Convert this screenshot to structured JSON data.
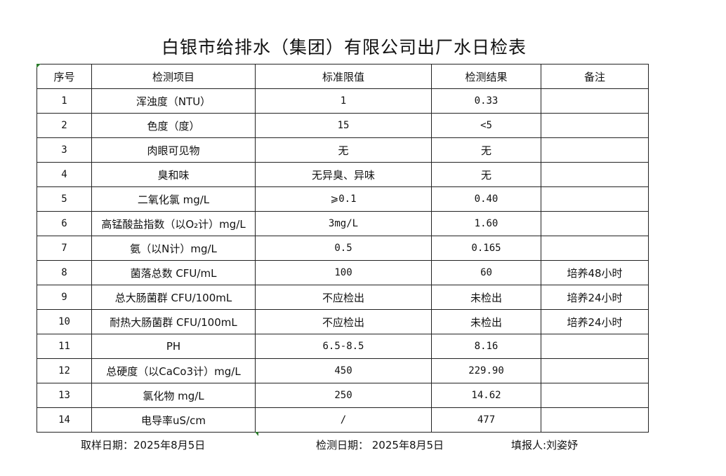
{
  "title": "白银市给排水（集团）有限公司出厂水日检表",
  "table": {
    "headers": [
      "序号",
      "检测项目",
      "标准限值",
      "检测结果",
      "备注"
    ],
    "rows": [
      [
        "1",
        "浑浊度（NTU）",
        "1",
        "0.33",
        ""
      ],
      [
        "2",
        "色度（度）",
        "15",
        "<5",
        ""
      ],
      [
        "3",
        "肉眼可见物",
        "无",
        "无",
        ""
      ],
      [
        "4",
        "臭和味",
        "无异臭、异味",
        "无",
        ""
      ],
      [
        "5",
        "二氧化氯 mg/L",
        "⩾0.1",
        "0.40",
        ""
      ],
      [
        "6",
        "高锰酸盐指数（以O₂计）mg/L",
        "3mg/L",
        "1.60",
        ""
      ],
      [
        "7",
        "氨（以N计）mg/L",
        "0.5",
        "0.165",
        ""
      ],
      [
        "8",
        "菌落总数 CFU/mL",
        "100",
        "60",
        "培养48小时"
      ],
      [
        "9",
        "总大肠菌群 CFU/100mL",
        "不应检出",
        "未检出",
        "培养24小时"
      ],
      [
        "10",
        "耐热大肠菌群 CFU/100mL",
        "不应检出",
        "未检出",
        "培养24小时"
      ],
      [
        "11",
        "PH",
        "6.5-8.5",
        "8.16",
        ""
      ],
      [
        "12",
        "总硬度（以CaCo3计）mg/L",
        "450",
        "229.90",
        ""
      ],
      [
        "13",
        "氯化物 mg/L",
        "250",
        "14.62",
        ""
      ],
      [
        "14",
        "电导率uS/cm",
        "/",
        "477",
        ""
      ]
    ]
  },
  "footer": {
    "sampling_date": "取样日期：2025年8月5日",
    "test_date": "检测日期： 2025年8月5日",
    "reporter": "填报人:刘姿妤"
  }
}
